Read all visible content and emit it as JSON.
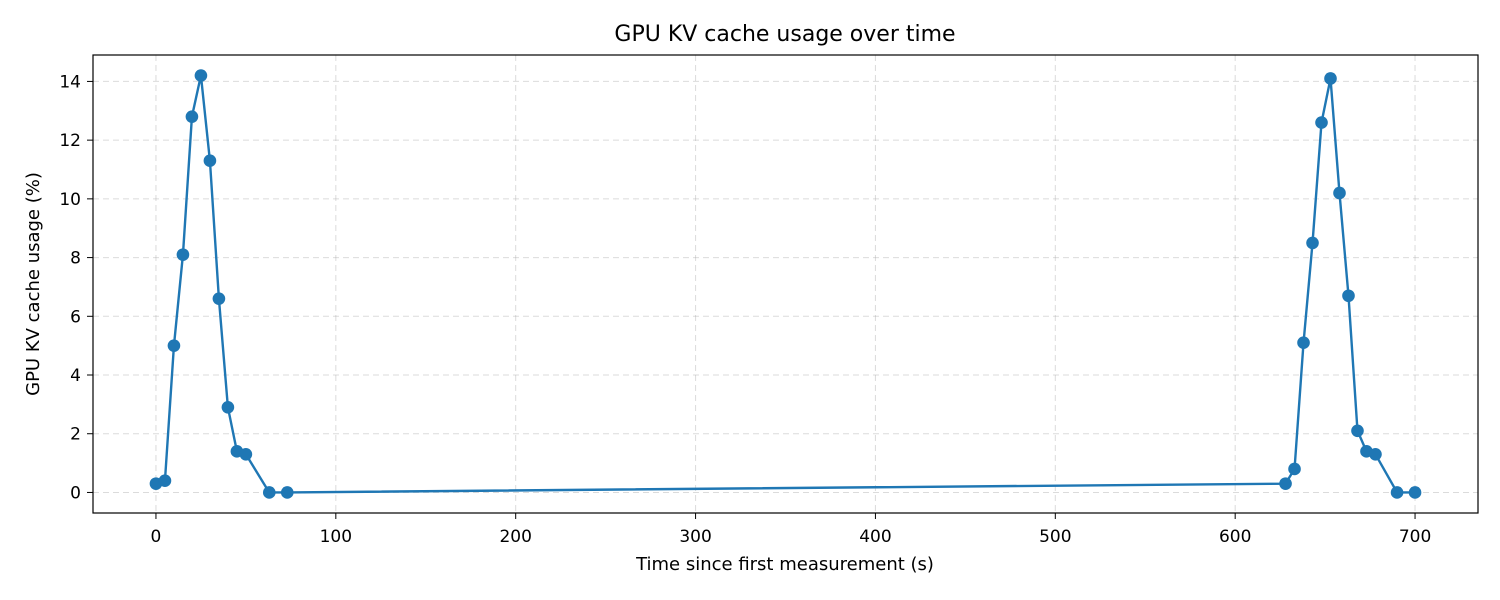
{
  "chart_data": {
    "type": "line",
    "title": "GPU KV cache usage over time",
    "xlabel": "Time since first measurement (s)",
    "ylabel": "GPU KV cache usage (%)",
    "xlim": [
      -35,
      735
    ],
    "ylim": [
      -0.7,
      14.9
    ],
    "xticks": [
      0,
      100,
      200,
      300,
      400,
      500,
      600,
      700
    ],
    "yticks": [
      0,
      2,
      4,
      6,
      8,
      10,
      12,
      14
    ],
    "grid": true,
    "color": "#1f77b4",
    "marker": "circle",
    "series": [
      {
        "x": [
          0,
          5,
          10,
          15,
          20,
          25,
          30,
          35,
          40,
          45,
          50,
          63,
          73,
          628,
          633,
          638,
          643,
          648,
          653,
          658,
          663,
          668,
          673,
          678,
          690,
          700
        ],
        "y": [
          0.3,
          0.4,
          5.0,
          8.1,
          12.8,
          14.2,
          11.3,
          6.6,
          2.9,
          1.4,
          1.3,
          0.0,
          0.0,
          0.3,
          0.8,
          5.1,
          8.5,
          12.6,
          14.1,
          10.2,
          6.7,
          2.1,
          1.4,
          1.3,
          0.0,
          0.0
        ]
      }
    ]
  }
}
